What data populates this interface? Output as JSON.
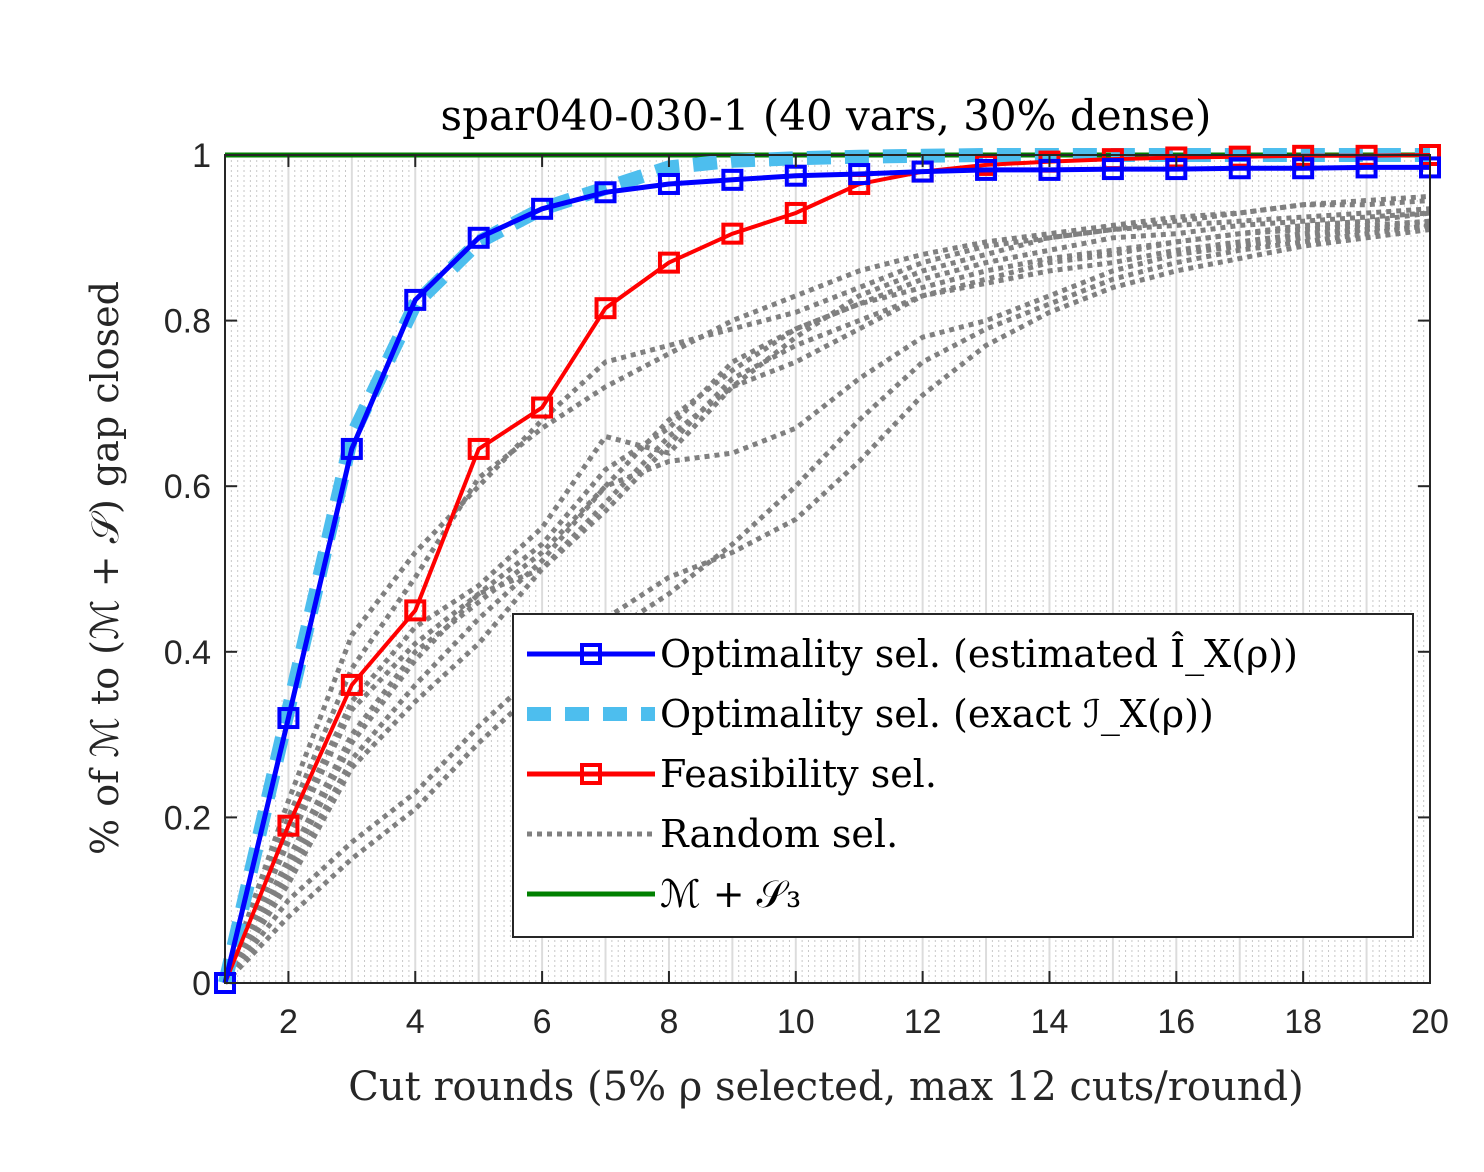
{
  "chart_data": {
    "type": "line",
    "title": "spar040-030-1 (40 vars, 30% dense)",
    "xlabel": "Cut rounds (5% ρ selected, max 12 cuts/round)",
    "ylabel": "% of ℳ to (ℳ + 𝒮) gap closed",
    "xlim": [
      1,
      20
    ],
    "ylim": [
      0,
      1
    ],
    "xticks": [
      2,
      4,
      6,
      8,
      10,
      12,
      14,
      16,
      18,
      20
    ],
    "yticks": [
      0,
      0.2,
      0.4,
      0.6,
      0.8,
      1
    ],
    "ytick_labels": [
      "0",
      "0.2",
      "0.4",
      "0.6",
      "0.8",
      "1"
    ],
    "grid": "vertical dotted lines at fractional rounds, solid light lines at integer rounds",
    "legend_position": "lower-right",
    "x": [
      1,
      2,
      3,
      4,
      5,
      6,
      7,
      8,
      9,
      10,
      11,
      12,
      13,
      14,
      15,
      16,
      17,
      18,
      19,
      20
    ],
    "series": [
      {
        "name": "Optimality sel. (estimated Î_X(ρ))",
        "color": "#0000ff",
        "style": "solid-square-markers",
        "values": [
          0,
          0.32,
          0.645,
          0.825,
          0.9,
          0.935,
          0.955,
          0.965,
          0.97,
          0.975,
          0.977,
          0.98,
          0.982,
          0.982,
          0.983,
          0.983,
          0.984,
          0.984,
          0.985,
          0.985
        ]
      },
      {
        "name": "Optimality sel. (exact ℐ_X(ρ))",
        "color": "#4dbeee",
        "style": "dashed",
        "values": [
          0,
          0.33,
          0.66,
          0.82,
          0.895,
          0.935,
          0.96,
          0.985,
          0.993,
          0.996,
          0.998,
          0.999,
          1,
          1,
          1,
          1,
          1,
          1,
          1,
          1
        ]
      },
      {
        "name": "Feasibility sel.",
        "color": "#ff0000",
        "style": "solid-square-markers",
        "values": [
          0,
          0.19,
          0.36,
          0.45,
          0.645,
          0.695,
          0.815,
          0.87,
          0.905,
          0.93,
          0.965,
          0.98,
          0.988,
          0.992,
          0.995,
          0.997,
          0.998,
          0.999,
          0.999,
          1
        ]
      },
      {
        "name": "Random sel.",
        "color": "#808080",
        "style": "dotted",
        "runs": [
          [
            0,
            0.22,
            0.42,
            0.52,
            0.6,
            0.68,
            0.75,
            0.77,
            0.79,
            0.81,
            0.84,
            0.87,
            0.89,
            0.9,
            0.91,
            0.92,
            0.93,
            0.94,
            0.945,
            0.95
          ],
          [
            0,
            0.2,
            0.38,
            0.49,
            0.61,
            0.67,
            0.72,
            0.76,
            0.8,
            0.83,
            0.86,
            0.88,
            0.895,
            0.905,
            0.915,
            0.925,
            0.93,
            0.94,
            0.94,
            0.945
          ],
          [
            0,
            0.18,
            0.34,
            0.43,
            0.48,
            0.55,
            0.66,
            0.64,
            0.72,
            0.78,
            0.83,
            0.86,
            0.88,
            0.9,
            0.91,
            0.915,
            0.92,
            0.925,
            0.93,
            0.935
          ],
          [
            0,
            0.17,
            0.33,
            0.41,
            0.47,
            0.53,
            0.62,
            0.67,
            0.75,
            0.79,
            0.82,
            0.85,
            0.87,
            0.885,
            0.9,
            0.905,
            0.915,
            0.92,
            0.925,
            0.93
          ],
          [
            0,
            0.15,
            0.3,
            0.4,
            0.46,
            0.52,
            0.6,
            0.63,
            0.64,
            0.67,
            0.73,
            0.78,
            0.8,
            0.83,
            0.86,
            0.88,
            0.89,
            0.9,
            0.91,
            0.92
          ],
          [
            0,
            0.14,
            0.29,
            0.39,
            0.47,
            0.5,
            0.58,
            0.66,
            0.72,
            0.75,
            0.79,
            0.83,
            0.85,
            0.87,
            0.88,
            0.895,
            0.905,
            0.91,
            0.915,
            0.92
          ],
          [
            0,
            0.13,
            0.27,
            0.36,
            0.44,
            0.51,
            0.6,
            0.68,
            0.74,
            0.79,
            0.82,
            0.84,
            0.86,
            0.875,
            0.885,
            0.895,
            0.905,
            0.915,
            0.92,
            0.93
          ],
          [
            0,
            0.12,
            0.26,
            0.34,
            0.41,
            0.5,
            0.57,
            0.65,
            0.73,
            0.77,
            0.8,
            0.83,
            0.845,
            0.86,
            0.87,
            0.885,
            0.895,
            0.905,
            0.91,
            0.915
          ],
          [
            0,
            0.1,
            0.17,
            0.23,
            0.31,
            0.38,
            0.44,
            0.49,
            0.52,
            0.56,
            0.63,
            0.71,
            0.77,
            0.81,
            0.84,
            0.86,
            0.875,
            0.89,
            0.9,
            0.91
          ],
          [
            0,
            0.08,
            0.15,
            0.21,
            0.29,
            0.36,
            0.42,
            0.47,
            0.53,
            0.6,
            0.68,
            0.75,
            0.79,
            0.82,
            0.85,
            0.87,
            0.885,
            0.895,
            0.905,
            0.915
          ]
        ]
      },
      {
        "name": "ℳ + 𝒮₃",
        "color": "#008000",
        "style": "solid",
        "values": [
          1,
          1,
          1,
          1,
          1,
          1,
          1,
          1,
          1,
          1,
          1,
          1,
          1,
          1,
          1,
          1,
          1,
          1,
          1,
          1
        ]
      }
    ],
    "legend": [
      {
        "label": "Optimality sel. (estimated Î_X(ρ))",
        "color": "#0000ff",
        "style": "solid-square-markers"
      },
      {
        "label": "Optimality sel. (exact ℐ_X(ρ))",
        "color": "#4dbeee",
        "style": "dashed"
      },
      {
        "label": "Feasibility sel.",
        "color": "#ff0000",
        "style": "solid-square-markers"
      },
      {
        "label": "Random sel.",
        "color": "#808080",
        "style": "dotted"
      },
      {
        "label": "ℳ + 𝒮₃",
        "color": "#008000",
        "style": "solid"
      }
    ]
  }
}
